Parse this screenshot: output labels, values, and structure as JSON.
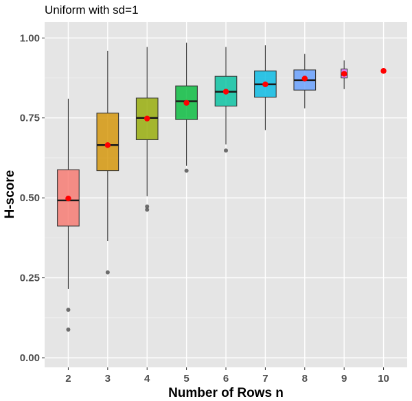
{
  "chart_data": {
    "type": "boxplot",
    "title": "Uniform with sd=1",
    "xlabel": "Number of Rows n",
    "ylabel": "H-score",
    "ylim": [
      -0.03,
      1.05
    ],
    "yticks": [
      0.0,
      0.25,
      0.5,
      0.75,
      1.0
    ],
    "ytick_labels": [
      "0.00",
      "0.25",
      "0.50",
      "0.75",
      "1.00"
    ],
    "grid": true,
    "legend": "none",
    "categories": [
      "2",
      "3",
      "4",
      "5",
      "6",
      "7",
      "8",
      "9",
      "10"
    ],
    "boxes": [
      {
        "x": "2",
        "min": 0.215,
        "q1": 0.412,
        "median": 0.492,
        "q3": 0.588,
        "max": 0.81,
        "mean": 0.498,
        "outliers": [
          0.15,
          0.088
        ],
        "color": "#F8766D"
      },
      {
        "x": "3",
        "min": 0.365,
        "q1": 0.585,
        "median": 0.665,
        "q3": 0.765,
        "max": 0.96,
        "mean": 0.665,
        "outliers": [
          0.267
        ],
        "color": "#D39200"
      },
      {
        "x": "4",
        "min": 0.505,
        "q1": 0.682,
        "median": 0.75,
        "q3": 0.812,
        "max": 0.972,
        "mean": 0.748,
        "outliers": [
          0.473,
          0.463
        ],
        "color": "#93AA00"
      },
      {
        "x": "5",
        "min": 0.6,
        "q1": 0.745,
        "median": 0.802,
        "q3": 0.85,
        "max": 0.985,
        "mean": 0.797,
        "outliers": [
          0.585
        ],
        "color": "#00BA38"
      },
      {
        "x": "6",
        "min": 0.667,
        "q1": 0.787,
        "median": 0.832,
        "q3": 0.88,
        "max": 0.972,
        "mean": 0.832,
        "outliers": [
          0.648
        ],
        "color": "#00C19F"
      },
      {
        "x": "7",
        "min": 0.712,
        "q1": 0.815,
        "median": 0.855,
        "q3": 0.897,
        "max": 0.977,
        "mean": 0.855,
        "outliers": [],
        "color": "#00B9E3"
      },
      {
        "x": "8",
        "min": 0.78,
        "q1": 0.837,
        "median": 0.868,
        "q3": 0.9,
        "max": 0.95,
        "mean": 0.873,
        "outliers": [],
        "color": "#619CFF"
      },
      {
        "x": "9",
        "min": 0.84,
        "q1": 0.875,
        "median": 0.885,
        "q3": 0.903,
        "max": 0.93,
        "mean": 0.888,
        "outliers": [],
        "color": "#DB72FB"
      },
      {
        "x": "10",
        "min": 0.897,
        "q1": 0.897,
        "median": 0.897,
        "q3": 0.897,
        "max": 0.897,
        "mean": 0.897,
        "outliers": [],
        "color": "#FF61C3"
      }
    ],
    "mean_marker_color": "#FF0000"
  }
}
